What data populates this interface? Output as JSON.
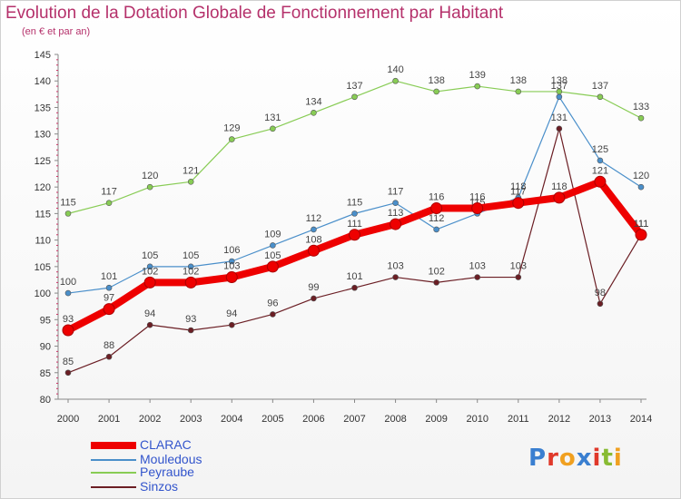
{
  "chart_data": {
    "type": "line",
    "title": "Evolution de la Dotation Globale de Fonctionnement par Habitant",
    "subtitle": "(en € et par an)",
    "x": [
      "2000",
      "2001",
      "2002",
      "2003",
      "2004",
      "2005",
      "2006",
      "2007",
      "2008",
      "2009",
      "2010",
      "2011",
      "2012",
      "2013",
      "2014"
    ],
    "ylim": [
      80,
      145
    ],
    "yticks": [
      80,
      85,
      90,
      95,
      100,
      105,
      110,
      115,
      120,
      125,
      130,
      135,
      140,
      145
    ],
    "series": [
      {
        "name": "Mouledous",
        "label": "Mouledous",
        "color": "#4a8fca",
        "values": [
          100,
          101,
          105,
          105,
          106,
          109,
          112,
          115,
          117,
          112,
          115,
          118,
          137,
          125,
          120
        ]
      },
      {
        "name": "Peyraube",
        "label": "Peyraube",
        "color": "#88cc55",
        "values": [
          115,
          117,
          120,
          121,
          129,
          131,
          134,
          137,
          140,
          138,
          139,
          138,
          138,
          137,
          133
        ]
      },
      {
        "name": "Sinzos",
        "label": "Sinzos",
        "color": "#6b1e24",
        "values": [
          85,
          88,
          94,
          93,
          94,
          96,
          99,
          101,
          103,
          102,
          103,
          103,
          131,
          98,
          111
        ]
      },
      {
        "name": "CLARAC",
        "label": "CLARAC",
        "color": "#ee0000",
        "values": [
          93,
          97,
          102,
          102,
          103,
          105,
          108,
          111,
          113,
          116,
          116,
          117,
          118,
          121,
          111
        ]
      }
    ]
  },
  "legend": {
    "items": [
      {
        "label": "CLARAC",
        "color": "#ee0000"
      },
      {
        "label": "Mouledous",
        "color": "#4a8fca"
      },
      {
        "label": "Peyraube",
        "color": "#88cc55"
      },
      {
        "label": "Sinzos",
        "color": "#6b1e24"
      }
    ]
  },
  "logo": {
    "text": "Proxiti"
  }
}
